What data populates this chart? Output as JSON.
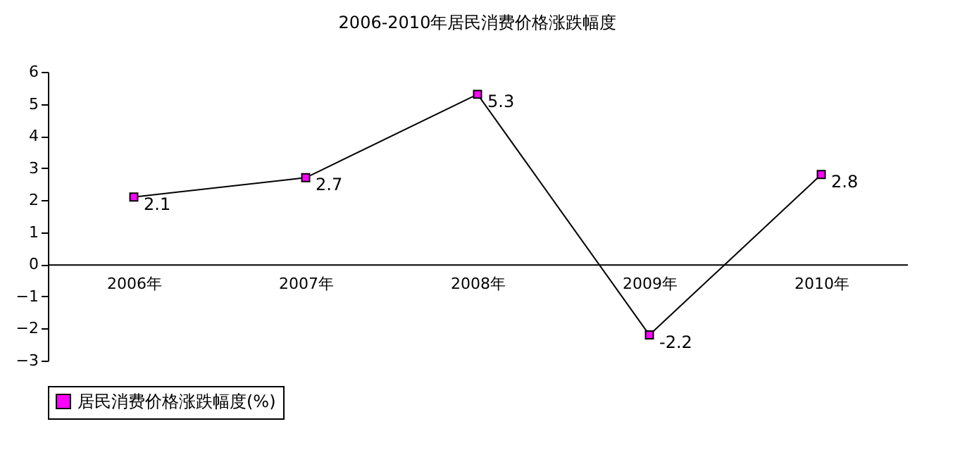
{
  "chart_data": {
    "type": "line",
    "title": "2006-2010年居民消费价格涨跌幅度",
    "categories": [
      "2006年",
      "2007年",
      "2008年",
      "2009年",
      "2010年"
    ],
    "series": [
      {
        "name": "居民消费价格涨跌幅度(%)",
        "color": "#ff00ff",
        "values": [
          2.1,
          2.7,
          5.3,
          -2.2,
          2.8
        ]
      }
    ],
    "ylim": [
      -3,
      6
    ],
    "yticks": [
      -3,
      -2,
      -1,
      0,
      1,
      2,
      3,
      4,
      5,
      6
    ],
    "data_labels": true,
    "marker": "square",
    "legend": "bottom",
    "grid": false
  }
}
